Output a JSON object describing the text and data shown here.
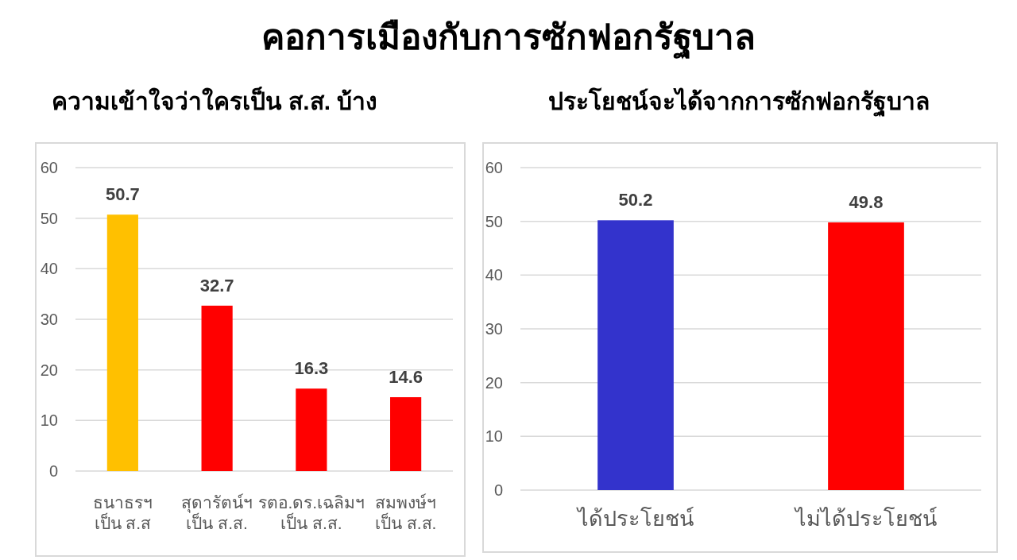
{
  "chart_data": [
    {
      "type": "bar",
      "title": "คอการเมืองกับการซักฟอกรัฐบาล",
      "subtitle": "ความเข้าใจว่าใครเป็น ส.ส. บ้าง",
      "categories": [
        "ธนาธรฯ\nเป็น ส.ส",
        "สุดารัตน์ฯ\nเป็น ส.ส.",
        "รตอ.ดร.เฉลิมฯ\nเป็น ส.ส.",
        "สมพงษ์ฯ\nเป็น ส.ส."
      ],
      "values": [
        50.7,
        32.7,
        16.3,
        14.6
      ],
      "colors": [
        "#ffc000",
        "#ff0000",
        "#ff0000",
        "#ff0000"
      ],
      "ylim": [
        0,
        60
      ],
      "yticks": [
        0,
        10,
        20,
        30,
        40,
        50,
        60
      ],
      "grid": "y",
      "data_labels": true
    },
    {
      "type": "bar",
      "title": "ประโยชน์จะได้จากการซักฟอกรัฐบาล",
      "categories": [
        "ได้ประโยชน์",
        "ไม่ได้ประโยชน์"
      ],
      "values": [
        50.2,
        49.8
      ],
      "colors": [
        "#3333cc",
        "#ff0000"
      ],
      "ylim": [
        0,
        60
      ],
      "yticks": [
        0,
        10,
        20,
        30,
        40,
        50,
        60
      ],
      "grid": "y",
      "data_labels": true
    }
  ]
}
